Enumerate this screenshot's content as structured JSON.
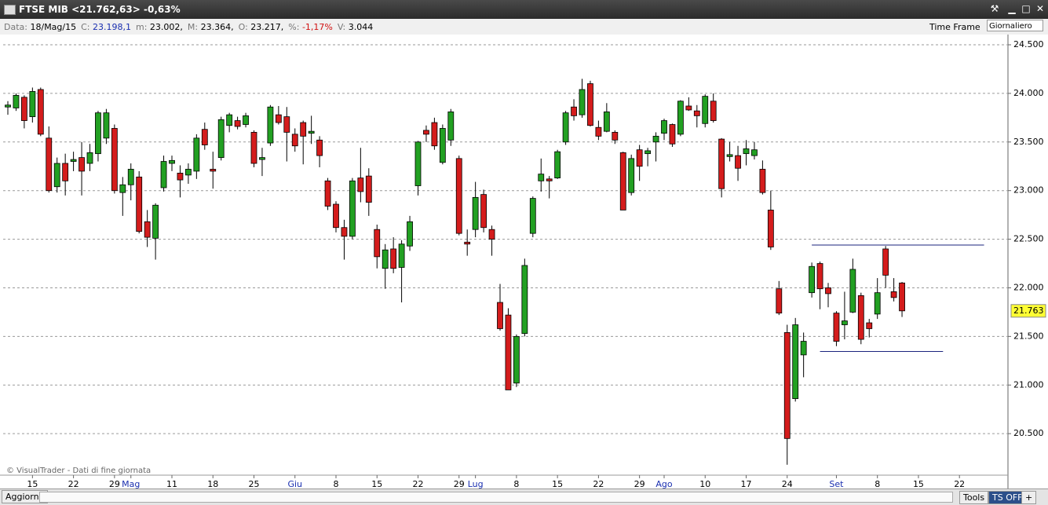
{
  "window": {
    "title": "FTSE MIB <21.762,63> -0,63%"
  },
  "info_bar": {
    "fields": [
      {
        "label": "Data:",
        "value": "18/Mag/15",
        "color": "#000000"
      },
      {
        "label": "C:",
        "value": "23.198,1",
        "color": "#1a2fb0"
      },
      {
        "label": "m:",
        "value": "23.002,",
        "color": "#000000"
      },
      {
        "label": "M:",
        "value": "23.364,",
        "color": "#000000"
      },
      {
        "label": "O:",
        "value": "23.217,",
        "color": "#000000"
      },
      {
        "label": "%:",
        "value": "-1,17%",
        "color": "#d01010"
      },
      {
        "label": "V:",
        "value": "3.044",
        "color": "#000000"
      }
    ],
    "time_frame_label": "Time Frame",
    "time_frame_value": "Giornaliero"
  },
  "footer": {
    "refresh": "Aggiorna",
    "tools": "Tools",
    "ts": "TS OFF",
    "plus": "+"
  },
  "chart_data": {
    "type": "candlestick",
    "watermark": "© VisualTrader - Dati di fine giornata",
    "categories": [
      null,
      null,
      null,
      "15",
      null,
      null,
      null,
      null,
      "22",
      null,
      null,
      null,
      null,
      "29",
      null,
      "Mag",
      null,
      null,
      null,
      null,
      "11",
      null,
      null,
      null,
      null,
      "18",
      null,
      null,
      null,
      null,
      "25",
      null,
      null,
      null,
      null,
      "Giu",
      null,
      null,
      null,
      null,
      "8",
      null,
      null,
      null,
      null,
      "15",
      null,
      null,
      null,
      null,
      "22",
      null,
      null,
      null,
      null,
      "29",
      null,
      "Lug",
      null,
      null,
      null,
      null,
      "8",
      null,
      null,
      null,
      null,
      "15",
      null,
      null,
      null,
      null,
      "22",
      null,
      null,
      null,
      null,
      "29",
      null,
      null,
      "Ago",
      null,
      null,
      null,
      null,
      "10",
      null,
      null,
      null,
      null,
      "17",
      null,
      null,
      null,
      null,
      "24",
      null,
      null,
      null,
      null,
      null,
      "Set",
      null,
      null,
      null,
      null,
      "8",
      null,
      null,
      null,
      null,
      "15",
      null,
      null,
      null,
      null,
      "22",
      null,
      null,
      null,
      null,
      null
    ],
    "series": [
      {
        "name": "FTSE MIB",
        "up_color": "#22a022",
        "down_color": "#d41c1c",
        "open": [
          23860,
          23850,
          23960,
          23760,
          24040,
          23540,
          23040,
          23280,
          23300,
          23340,
          23280,
          23380,
          23540,
          23640,
          22980,
          23060,
          23140,
          22680,
          22510,
          23030,
          23280,
          23180,
          23160,
          23200,
          23630,
          23220,
          23340,
          23670,
          23720,
          23680,
          23600,
          23320,
          23490,
          23780,
          23760,
          23580,
          23700,
          23590,
          23520,
          23100,
          22860,
          22620,
          22530,
          23130,
          23150,
          22600,
          22200,
          22400,
          22210,
          22430,
          23050,
          23620,
          23700,
          23290,
          23520,
          23330,
          22470,
          22600,
          22960,
          22600,
          21850,
          21720,
          21020,
          21530,
          22560,
          23100,
          23120,
          23130,
          23500,
          23860,
          23780,
          24100,
          23650,
          23610,
          23600,
          23390,
          22980,
          23420,
          23380,
          23500,
          23590,
          23680,
          23580,
          23870,
          23820,
          23690,
          23920,
          23530,
          23350,
          23360,
          23380,
          23360,
          23220,
          22800,
          21990,
          21540,
          20860,
          21310,
          21950,
          22250,
          22000,
          21740,
          21620,
          21750,
          21920,
          21640,
          21730,
          22400,
          21960,
          22050,
          null,
          null,
          null,
          null,
          null,
          null,
          null,
          null,
          null,
          null,
          null,
          null
        ],
        "high": [
          23920,
          24000,
          23980,
          24060,
          24060,
          23660,
          23340,
          23380,
          23400,
          23500,
          23480,
          23820,
          23840,
          23680,
          23140,
          23280,
          23200,
          22800,
          22870,
          23360,
          23360,
          23260,
          23280,
          23580,
          23700,
          23400,
          23760,
          23800,
          23760,
          23800,
          23620,
          23440,
          23880,
          23870,
          23860,
          23640,
          23720,
          23770,
          23560,
          23130,
          22890,
          22700,
          23130,
          23440,
          23230,
          22650,
          22450,
          22520,
          22490,
          22740,
          23510,
          23670,
          23750,
          23680,
          23840,
          23360,
          22600,
          23090,
          23010,
          22640,
          22040,
          21790,
          21520,
          22300,
          22940,
          23330,
          23150,
          23420,
          23820,
          23940,
          24150,
          24130,
          23720,
          23900,
          23620,
          23400,
          23370,
          23470,
          23440,
          23600,
          23740,
          23690,
          23930,
          23960,
          23880,
          23990,
          24000,
          23540,
          23500,
          23460,
          23520,
          23500,
          23310,
          23000,
          22070,
          21620,
          21690,
          21540,
          22260,
          22270,
          22050,
          21760,
          21960,
          22300,
          21950,
          21680,
          22100,
          22430,
          22100,
          22060,
          null,
          null,
          null,
          null,
          null,
          null,
          null,
          null,
          null,
          null,
          null,
          null
        ],
        "low": [
          23780,
          23820,
          23640,
          23700,
          23560,
          22980,
          22980,
          22950,
          23200,
          22950,
          23200,
          23300,
          23480,
          22970,
          22740,
          22900,
          22560,
          22420,
          22290,
          22990,
          23200,
          22930,
          23070,
          23120,
          23420,
          23020,
          23310,
          23600,
          23630,
          23650,
          23240,
          23150,
          23460,
          23680,
          23300,
          23400,
          23270,
          23480,
          23240,
          22800,
          22570,
          22290,
          22500,
          22880,
          22740,
          22200,
          21990,
          22150,
          21850,
          22380,
          22950,
          23500,
          23420,
          23270,
          23460,
          22540,
          22330,
          22520,
          22570,
          22330,
          21560,
          20950,
          20980,
          21500,
          22520,
          22990,
          22920,
          23120,
          23470,
          23720,
          23750,
          23660,
          23520,
          23600,
          23480,
          22800,
          22950,
          23100,
          23250,
          23300,
          23520,
          23450,
          23560,
          23820,
          23650,
          23650,
          23700,
          22930,
          23300,
          23100,
          23260,
          23320,
          22960,
          22390,
          21720,
          20180,
          20830,
          21080,
          21900,
          21780,
          21800,
          21400,
          21470,
          21740,
          21420,
          21490,
          21680,
          22000,
          21860,
          21700,
          null,
          null,
          null,
          null,
          null,
          null,
          null,
          null,
          null,
          null,
          null,
          null
        ],
        "close": [
          23880,
          23980,
          23720,
          24020,
          23580,
          23000,
          23280,
          23100,
          23320,
          23200,
          23390,
          23800,
          23800,
          23000,
          23060,
          23220,
          22580,
          22520,
          22850,
          23300,
          23310,
          23110,
          23220,
          23540,
          23470,
          23200,
          23730,
          23780,
          23660,
          23770,
          23280,
          23340,
          23860,
          23700,
          23600,
          23460,
          23560,
          23610,
          23360,
          22840,
          22620,
          22530,
          23100,
          22990,
          22880,
          22320,
          22390,
          22200,
          22450,
          22680,
          23500,
          23580,
          23460,
          23640,
          23810,
          22560,
          22450,
          22930,
          22620,
          22500,
          21580,
          20950,
          21500,
          22230,
          22920,
          23170,
          23100,
          23400,
          23800,
          23770,
          24040,
          23670,
          23560,
          23810,
          23520,
          22800,
          23330,
          23250,
          23410,
          23560,
          23720,
          23480,
          23920,
          23830,
          23770,
          23970,
          23720,
          23020,
          23370,
          23230,
          23430,
          23420,
          22980,
          22420,
          21740,
          20450,
          21620,
          21450,
          22220,
          21990,
          21940,
          21450,
          21660,
          22190,
          21470,
          21580,
          21950,
          22130,
          21900,
          21763,
          null,
          null,
          null,
          null,
          null,
          null,
          null,
          null,
          null,
          null,
          null,
          null
        ]
      }
    ],
    "ylim": [
      20073,
      24589
    ],
    "yticks": [
      {
        "value": 20500,
        "label": "20.500"
      },
      {
        "value": 21000,
        "label": "21.000"
      },
      {
        "value": 21500,
        "label": "21.500"
      },
      {
        "value": 22000,
        "label": "22.000"
      },
      {
        "value": 22500,
        "label": "22.500"
      },
      {
        "value": 23000,
        "label": "23.000"
      },
      {
        "value": 23500,
        "label": "23.500"
      },
      {
        "value": 24000,
        "label": "24.000"
      },
      {
        "value": 24500,
        "label": "24.500"
      }
    ],
    "grid": true,
    "last_price": {
      "value": 21763,
      "label": "21.763"
    },
    "hlines": [
      {
        "value": 22440,
        "from": 98,
        "to": 119,
        "color": "#1a237e"
      },
      {
        "value": 21345,
        "from": 99,
        "to": 114,
        "color": "#1a237e"
      }
    ]
  }
}
